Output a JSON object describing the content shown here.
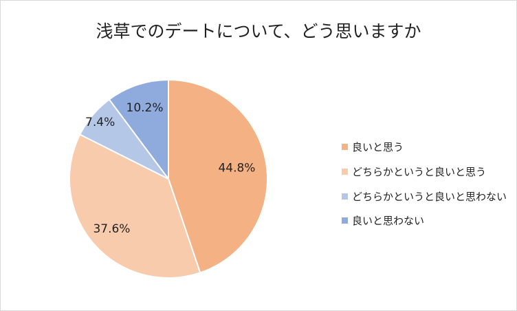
{
  "chart_data": {
    "type": "pie",
    "title": "浅草でのデートについて、どう思いますか",
    "categories": [
      "良いと思う",
      "どちらかというと良いと思う",
      "どちらかというと良いと思わない",
      "良いと思わない"
    ],
    "values": [
      44.8,
      37.6,
      7.4,
      10.2
    ],
    "data_labels": [
      "44.8%",
      "37.6%",
      "7.4%",
      "10.2%"
    ],
    "colors": [
      "#F4B183",
      "#F8CBAD",
      "#B4C7E7",
      "#8FAADC"
    ],
    "start_angle": "top, clockwise",
    "legend_position": "right"
  }
}
